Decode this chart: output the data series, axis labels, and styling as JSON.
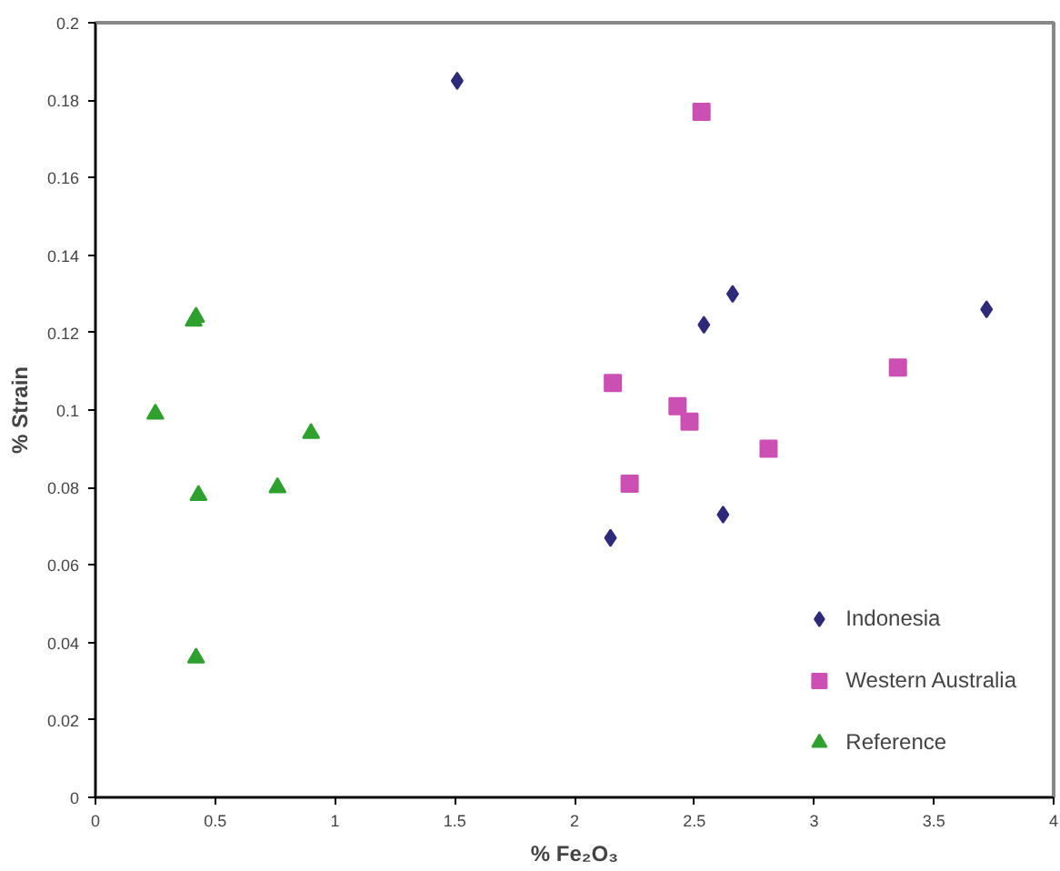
{
  "chart_data": {
    "type": "scatter",
    "xlabel": "% Fe₂O₃",
    "ylabel": "% Strain",
    "xlim": [
      0,
      4
    ],
    "ylim": [
      0,
      0.2
    ],
    "xticks": [
      0,
      0.5,
      1,
      1.5,
      2,
      2.5,
      3,
      3.5,
      4
    ],
    "yticks": [
      0,
      0.02,
      0.04,
      0.06,
      0.08,
      0.1,
      0.12,
      0.14,
      0.16,
      0.18,
      0.2
    ],
    "grid": false,
    "legend": "bottom right",
    "series": [
      {
        "name": "Indonesia",
        "color": "#2e2a7a",
        "marker": "diamond",
        "x": [
          1.51,
          2.15,
          2.54,
          2.66,
          2.62,
          3.72
        ],
        "values": [
          0.185,
          0.067,
          0.122,
          0.13,
          0.073,
          0.126
        ]
      },
      {
        "name": "Western Australia",
        "color": "#cc4fb4",
        "marker": "square",
        "x": [
          2.53,
          2.16,
          2.43,
          2.48,
          2.23,
          2.81,
          3.35
        ],
        "values": [
          0.177,
          0.107,
          0.101,
          0.097,
          0.081,
          0.09,
          0.111
        ]
      },
      {
        "name": "Reference",
        "color": "#2ea02e",
        "marker": "triangle",
        "x": [
          0.25,
          0.41,
          0.42,
          0.43,
          0.42,
          0.76,
          0.9
        ],
        "values": [
          0.099,
          0.123,
          0.124,
          0.078,
          0.036,
          0.08,
          0.094
        ]
      }
    ]
  }
}
